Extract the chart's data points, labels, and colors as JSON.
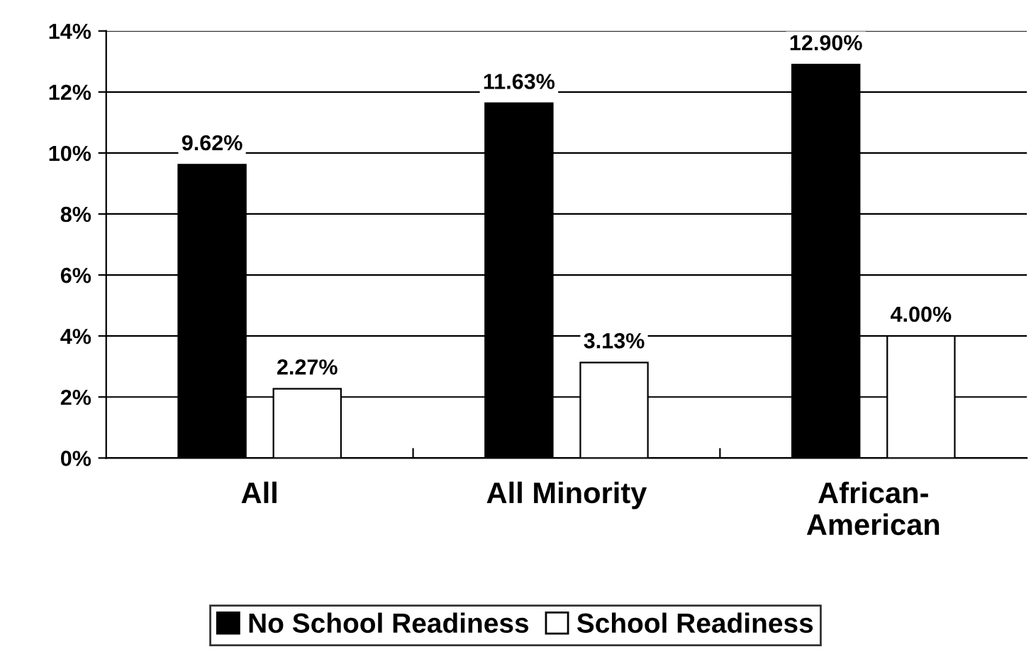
{
  "chart_data": {
    "type": "bar",
    "categories": [
      "All",
      "All Minority",
      "African-\nAmerican"
    ],
    "series": [
      {
        "name": "No School Readiness",
        "color": "#000000",
        "values": [
          9.62,
          11.63,
          12.9
        ],
        "value_labels": [
          "9.62%",
          "11.63%",
          "12.90%"
        ]
      },
      {
        "name": "School Readiness",
        "color": "#ffffff",
        "values": [
          2.27,
          3.13,
          4.0
        ],
        "value_labels": [
          "2.27%",
          "3.13%",
          "4.00%"
        ]
      }
    ],
    "ylim": [
      0,
      14
    ],
    "yticks": [
      {
        "value": 0,
        "label": "0%"
      },
      {
        "value": 2,
        "label": "2%"
      },
      {
        "value": 4,
        "label": "4%"
      },
      {
        "value": 6,
        "label": "6%"
      },
      {
        "value": 8,
        "label": "8%"
      },
      {
        "value": 10,
        "label": "10%"
      },
      {
        "value": 12,
        "label": "12%"
      },
      {
        "value": 14,
        "label": "14%"
      }
    ],
    "grid": "y",
    "legend": "bottom"
  }
}
